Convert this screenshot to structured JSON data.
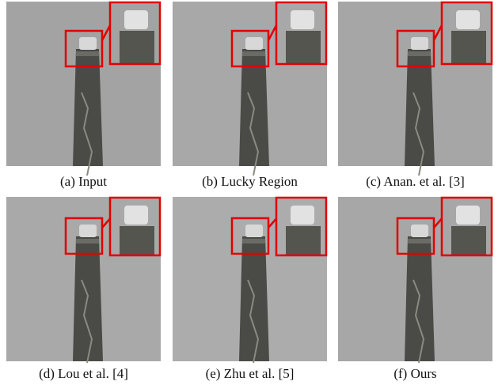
{
  "panels": [
    {
      "caption": "(a) Input"
    },
    {
      "caption": "(b) Lucky Region"
    },
    {
      "caption": "(c) Anan. et al. [3]"
    },
    {
      "caption": "(d) Lou et al. [4]"
    },
    {
      "caption": "(e) Zhu et al. [5]"
    },
    {
      "caption": "(f) Ours"
    }
  ]
}
